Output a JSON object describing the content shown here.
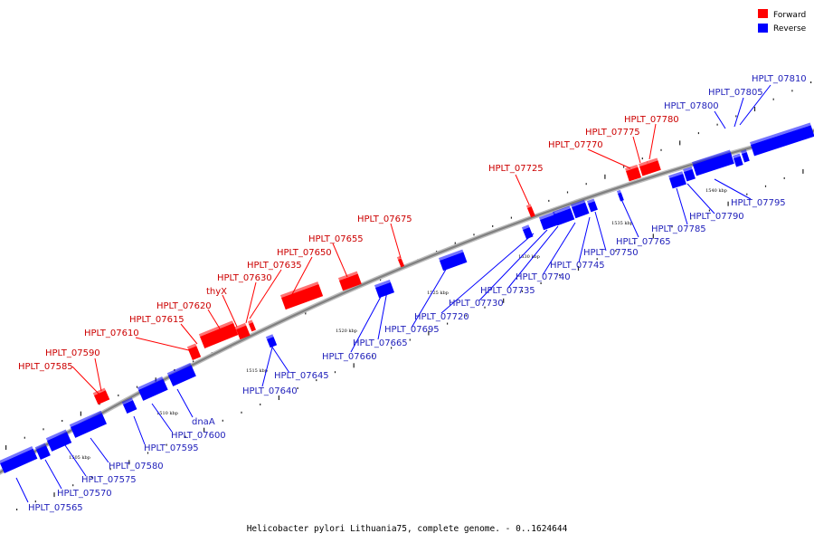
{
  "caption": "Helicobacter pylori Lithuania75, complete genome. - 0..1624644",
  "legend": [
    {
      "label": "Forward",
      "color": "#ff0000"
    },
    {
      "label": "Reverse",
      "color": "#0000ff"
    }
  ],
  "colors": {
    "forward": "#ff0000",
    "reverse": "#0000ff",
    "forward_label": "#cc0000",
    "reverse_label": "#2222bb",
    "backbone": "#808080"
  },
  "scale_ticks": [
    "1505 kbp",
    "1510 kbp",
    "1515 kbp",
    "1520 kbp",
    "1525 kbp",
    "1530 kbp",
    "1535 kbp",
    "1540 kbp"
  ],
  "forward_genes": [
    "HPLT_07585",
    "HPLT_07590",
    "HPLT_07610",
    "HPLT_07615",
    "HPLT_07620",
    "thyX",
    "HPLT_07630",
    "HPLT_07635",
    "HPLT_07650",
    "HPLT_07655",
    "HPLT_07675",
    "HPLT_07725",
    "HPLT_07770",
    "HPLT_07775",
    "HPLT_07780"
  ],
  "reverse_genes": [
    "HPLT_07565",
    "HPLT_07570",
    "HPLT_07575",
    "HPLT_07580",
    "HPLT_07595",
    "HPLT_07600",
    "dnaA",
    "HPLT_07640",
    "HPLT_07645",
    "HPLT_07660",
    "HPLT_07665",
    "HPLT_07695",
    "HPLT_07720",
    "HPLT_07730",
    "HPLT_07735",
    "HPLT_07740",
    "HPLT_07745",
    "HPLT_07750",
    "HPLT_07765",
    "HPLT_07785",
    "HPLT_07790",
    "HPLT_07795",
    "HPLT_07800",
    "HPLT_07805",
    "HPLT_07810"
  ]
}
